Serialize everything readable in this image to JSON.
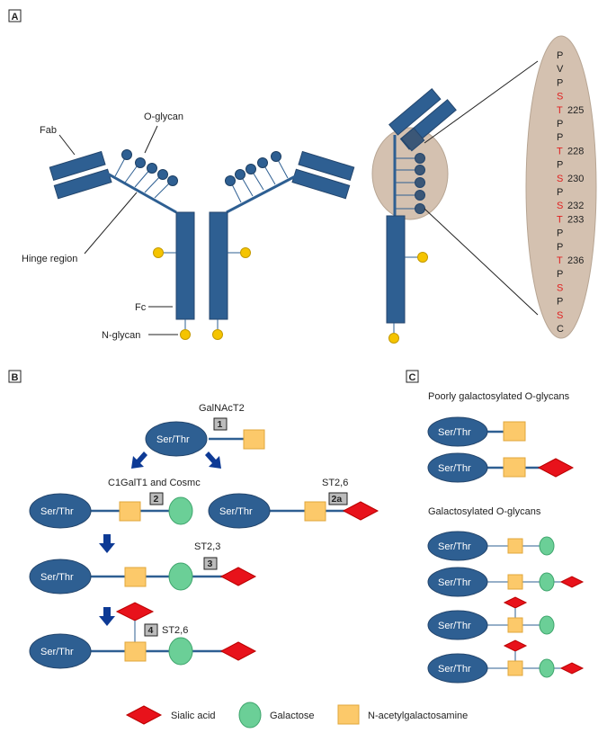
{
  "colors": {
    "blue": "#2e5f92",
    "blue_dark": "#24466d",
    "sialic": "#e8121b",
    "galactose": "#6bcf97",
    "galnac": "#fcc96a",
    "nglycan": "#f5c400",
    "ellipse": "#d4c1b0",
    "arrow": "#0d3a95",
    "red_text": "#e02020",
    "step_box": "#bcbcbc"
  },
  "panelA": {
    "label": "A",
    "fab": "Fab",
    "oglycan": "O-glycan",
    "hinge": "Hinge region",
    "fc": "Fc",
    "nglycan": "N-glycan",
    "sequence": [
      {
        "aa": "P",
        "red": false,
        "num": ""
      },
      {
        "aa": "V",
        "red": false,
        "num": ""
      },
      {
        "aa": "P",
        "red": false,
        "num": ""
      },
      {
        "aa": "S",
        "red": true,
        "num": ""
      },
      {
        "aa": "T",
        "red": true,
        "num": "225"
      },
      {
        "aa": "P",
        "red": false,
        "num": ""
      },
      {
        "aa": "P",
        "red": false,
        "num": ""
      },
      {
        "aa": "T",
        "red": true,
        "num": "228"
      },
      {
        "aa": "P",
        "red": false,
        "num": ""
      },
      {
        "aa": "S",
        "red": true,
        "num": "230"
      },
      {
        "aa": "P",
        "red": false,
        "num": ""
      },
      {
        "aa": "S",
        "red": true,
        "num": "232"
      },
      {
        "aa": "T",
        "red": true,
        "num": "233"
      },
      {
        "aa": "P",
        "red": false,
        "num": ""
      },
      {
        "aa": "P",
        "red": false,
        "num": ""
      },
      {
        "aa": "T",
        "red": true,
        "num": "236"
      },
      {
        "aa": "P",
        "red": false,
        "num": ""
      },
      {
        "aa": "S",
        "red": true,
        "num": ""
      },
      {
        "aa": "P",
        "red": false,
        "num": ""
      },
      {
        "aa": "S",
        "red": true,
        "num": ""
      },
      {
        "aa": "C",
        "red": false,
        "num": ""
      }
    ]
  },
  "panelB": {
    "label": "B",
    "sertr": "Ser/Thr",
    "galnact2": "GalNAcT2",
    "c1galt1": "C1GalT1 and Cosmc",
    "st26": "ST2,6",
    "st23": "ST2,3",
    "step1": "1",
    "step2": "2",
    "step2a": "2a",
    "step3": "3",
    "step4": "4"
  },
  "panelC": {
    "label": "C",
    "poor_title": "Poorly galactosylated O-glycans",
    "gal_title": "Galactosylated O-glycans",
    "sertr": "Ser/Thr"
  },
  "legend": {
    "sialic": "Sialic acid",
    "galactose": "Galactose",
    "galnac": "N-acetylgalactosamine"
  }
}
